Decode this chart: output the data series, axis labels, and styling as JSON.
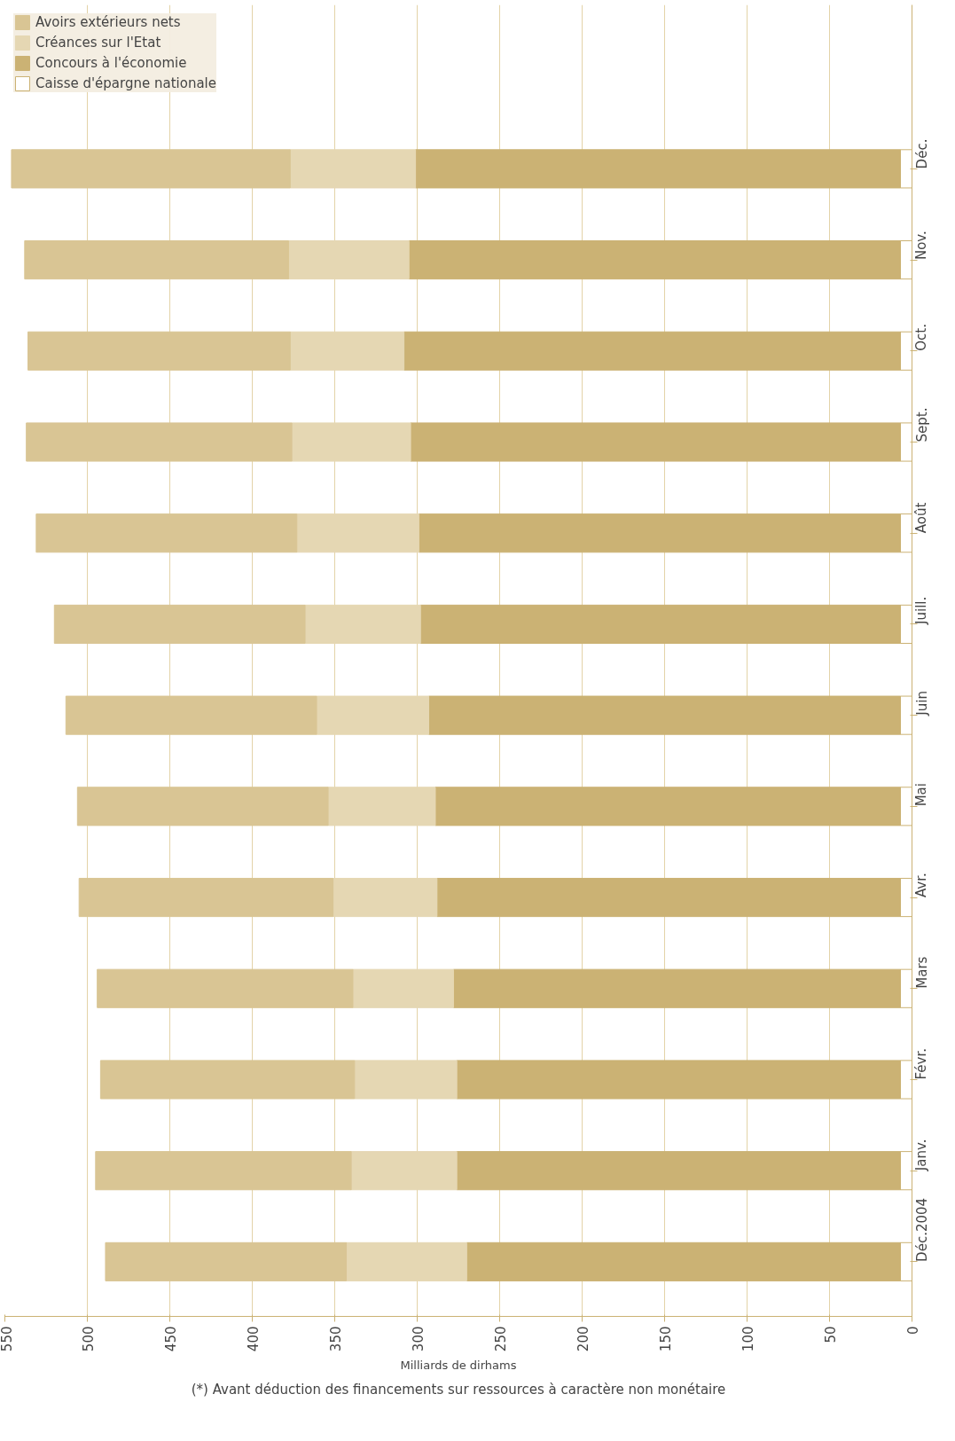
{
  "chart_data": {
    "type": "bar",
    "orientation": "horizontal",
    "stacked": true,
    "xlabel": "Milliards de dirhams",
    "annotations": [
      "(*) Avant déduction des financements sur ressources à caractère non monétaire"
    ],
    "categories": [
      "Déc.",
      "Nov.",
      "Oct.",
      "Sept.",
      "Août",
      "Juill.",
      "Juin",
      "Mai",
      "Avr.",
      "Mars",
      "Févr.",
      "Janv.",
      "Déc.2004"
    ],
    "series": [
      {
        "name": "Caisse d'épargne nationale",
        "color": "#ffffff",
        "values": [
          7,
          7,
          7,
          7,
          7,
          7,
          7,
          7,
          7,
          7,
          7,
          7,
          7
        ]
      },
      {
        "name": "Concours à l'économie",
        "color": "#cbb274",
        "values": [
          294,
          298,
          301,
          297,
          292,
          291,
          286,
          282,
          281,
          271,
          269,
          269,
          263
        ]
      },
      {
        "name": "Créances sur l'Etat",
        "color": "#e5d7b3",
        "values": [
          76,
          73,
          69,
          72,
          74,
          70,
          68,
          65,
          63,
          61,
          62,
          64,
          73
        ]
      },
      {
        "name": "Avoirs extérieurs nets",
        "color": "#d9c594",
        "values": [
          169,
          160,
          159,
          161,
          158,
          152,
          152,
          152,
          154,
          155,
          154,
          155,
          146
        ]
      }
    ],
    "xlim": [
      550,
      0
    ],
    "xticks": [
      550,
      500,
      450,
      400,
      350,
      300,
      250,
      200,
      150,
      100,
      50,
      0
    ],
    "grid": "x",
    "legend": "top left"
  }
}
